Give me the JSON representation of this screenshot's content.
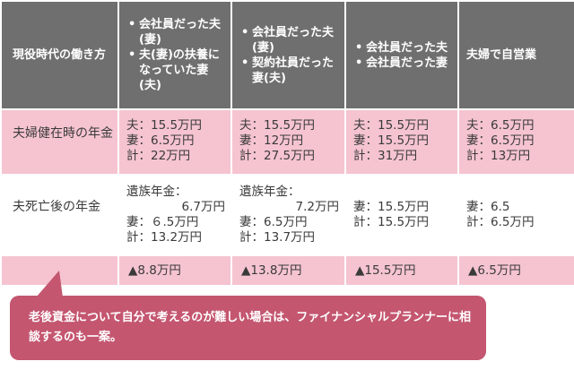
{
  "table": {
    "corner_header": "現役時代の働き方",
    "columns": [
      {
        "items": [
          "会社員だった夫(妻)",
          "夫(妻)の扶養になっていた妻(夫)"
        ]
      },
      {
        "items": [
          "会社員だった夫(妻)",
          "契約社員だった妻(夫)"
        ]
      },
      {
        "items": [
          "会社員だった夫",
          "会社員だった妻"
        ]
      },
      {
        "text": "夫婦で自営業"
      }
    ],
    "rows": {
      "married": {
        "label": "夫婦健在時の年金",
        "cells": [
          [
            "夫：15.5万円",
            "妻：6.5万円",
            "計：22万円"
          ],
          [
            "夫：15.5万円",
            "妻：12万円",
            "計：27.5万円"
          ],
          [
            "夫：15.5万円",
            "妻：15.5万円",
            "計：31万円"
          ],
          [
            "夫：6.5万円",
            "妻：6.5万円",
            "計：13万円"
          ]
        ]
      },
      "after_death": {
        "label": "夫死亡後の年金",
        "cells": [
          [
            "遺族年金：",
            "6.7万円",
            "妻：６.5万円",
            "計：13.2万円"
          ],
          [
            "遺族年金：",
            "7.2万円",
            "妻：6.5万円",
            "計：13.7万円"
          ],
          [
            "妻：15.5万円",
            "計：15.5万円"
          ],
          [
            "妻：6.5",
            "計：6.5万円"
          ]
        ]
      },
      "difference": {
        "cells": [
          "▲8.8万円",
          "▲13.8万円",
          "▲15.5万円",
          "▲6.5万円"
        ]
      }
    }
  },
  "callout": {
    "text": "老後資金について自分で考えるのが難しい場合は、ファイナンシャルプランナーに相談するのも一案。"
  }
}
